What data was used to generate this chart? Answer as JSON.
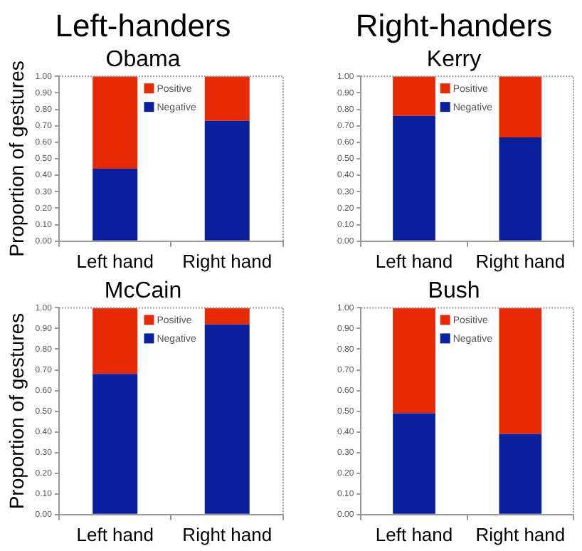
{
  "chart_data": [
    {
      "type": "bar",
      "title": "Left-handers",
      "subtitle": "Obama",
      "ylabel": "Proportion of gestures",
      "categories": [
        "Left hand",
        "Right hand"
      ],
      "stacked": true,
      "legend": "top",
      "ylim": [
        0,
        1
      ],
      "yticks": [
        {
          "value": 0,
          "label": "0.00"
        },
        {
          "value": 0.1,
          "label": "0.10"
        },
        {
          "value": 0.2,
          "label": "0.20"
        },
        {
          "value": 0.3,
          "label": "0.30"
        },
        {
          "value": 0.4,
          "label": "0.40"
        },
        {
          "value": 0.5,
          "label": "0.50"
        },
        {
          "value": 0.6,
          "label": "0.60"
        },
        {
          "value": 0.7,
          "label": "0.70"
        },
        {
          "value": 0.8,
          "label": "0.80"
        },
        {
          "value": 0.9,
          "label": "0.90"
        },
        {
          "value": 1,
          "label": "1.00"
        }
      ],
      "series": [
        {
          "name": "Negative",
          "color": "#0a1f9c",
          "values": [
            0.44,
            0.73
          ]
        },
        {
          "name": "Positive",
          "color": "#e62a06",
          "values": [
            0.56,
            0.27
          ]
        }
      ]
    },
    {
      "type": "bar",
      "title": "Right-handers",
      "subtitle": "Kerry",
      "categories": [
        "Left hand",
        "Right hand"
      ],
      "stacked": true,
      "legend": "top",
      "ylim": [
        0,
        1
      ],
      "yticks": [
        {
          "value": 0,
          "label": "0.00"
        },
        {
          "value": 0.1,
          "label": "0.10"
        },
        {
          "value": 0.2,
          "label": "0.20"
        },
        {
          "value": 0.3,
          "label": "0.30"
        },
        {
          "value": 0.4,
          "label": "0.40"
        },
        {
          "value": 0.5,
          "label": "0.50"
        },
        {
          "value": 0.6,
          "label": "0.60"
        },
        {
          "value": 0.7,
          "label": "0.70"
        },
        {
          "value": 0.8,
          "label": "0.80"
        },
        {
          "value": 0.9,
          "label": "0.90"
        },
        {
          "value": 1,
          "label": "1.00"
        }
      ],
      "series": [
        {
          "name": "Negative",
          "color": "#0a1f9c",
          "values": [
            0.76,
            0.63
          ]
        },
        {
          "name": "Positive",
          "color": "#e62a06",
          "values": [
            0.24,
            0.37
          ]
        }
      ]
    },
    {
      "type": "bar",
      "title": "McCain",
      "ylabel": "Proportion of gestures",
      "categories": [
        "Left hand",
        "Right hand"
      ],
      "stacked": true,
      "legend": "top",
      "ylim": [
        0,
        1
      ],
      "yticks": [
        {
          "value": 0,
          "label": "0.00"
        },
        {
          "value": 0.1,
          "label": "0.10"
        },
        {
          "value": 0.2,
          "label": "0.20"
        },
        {
          "value": 0.3,
          "label": "0.30"
        },
        {
          "value": 0.4,
          "label": "0.40"
        },
        {
          "value": 0.5,
          "label": "0.50"
        },
        {
          "value": 0.6,
          "label": "0.60"
        },
        {
          "value": 0.7,
          "label": "0.70"
        },
        {
          "value": 0.8,
          "label": "0.80"
        },
        {
          "value": 0.9,
          "label": "0.90"
        },
        {
          "value": 1,
          "label": "1.00"
        }
      ],
      "series": [
        {
          "name": "Negative",
          "color": "#0a1f9c",
          "values": [
            0.68,
            0.92
          ]
        },
        {
          "name": "Positive",
          "color": "#e62a06",
          "values": [
            0.32,
            0.08
          ]
        }
      ]
    },
    {
      "type": "bar",
      "title": "Bush",
      "categories": [
        "Left hand",
        "Right hand"
      ],
      "stacked": true,
      "legend": "top",
      "ylim": [
        0,
        1
      ],
      "yticks": [
        {
          "value": 0,
          "label": "0.00"
        },
        {
          "value": 0.1,
          "label": "0.10"
        },
        {
          "value": 0.2,
          "label": "0.20"
        },
        {
          "value": 0.3,
          "label": "0.30"
        },
        {
          "value": 0.4,
          "label": "0.40"
        },
        {
          "value": 0.5,
          "label": "0.50"
        },
        {
          "value": 0.6,
          "label": "0.60"
        },
        {
          "value": 0.7,
          "label": "0.70"
        },
        {
          "value": 0.8,
          "label": "0.80"
        },
        {
          "value": 0.9,
          "label": "0.90"
        },
        {
          "value": 1,
          "label": "1.00"
        }
      ],
      "series": [
        {
          "name": "Negative",
          "color": "#0a1f9c",
          "values": [
            0.49,
            0.39
          ]
        },
        {
          "name": "Positive",
          "color": "#e62a06",
          "values": [
            0.51,
            0.61
          ]
        }
      ]
    }
  ]
}
